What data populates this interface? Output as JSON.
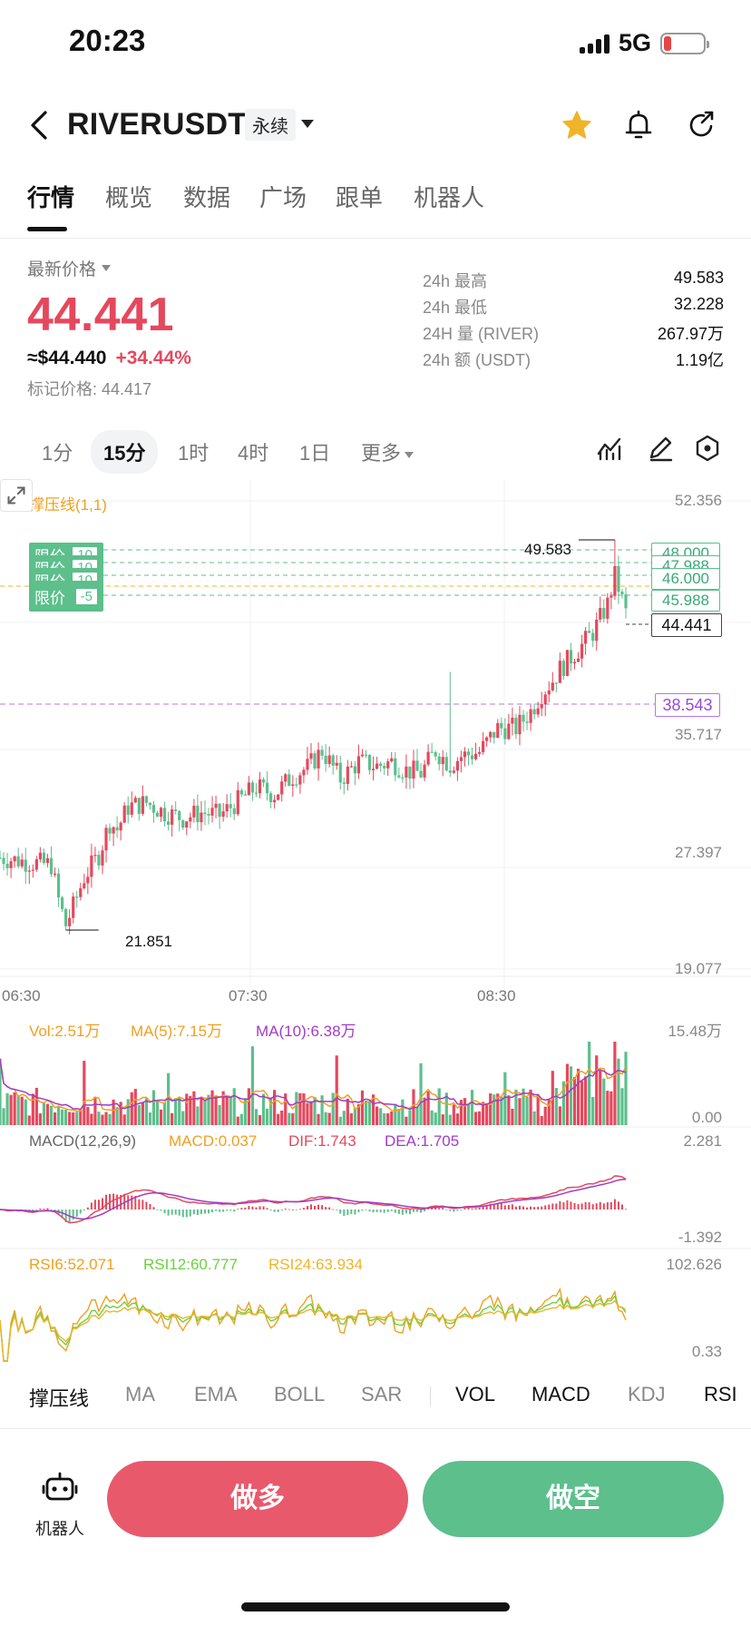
{
  "status": {
    "time": "20:23",
    "network": "5G"
  },
  "header": {
    "symbol": "RIVERUSDT",
    "contract_type": "永续"
  },
  "tabs": [
    "行情",
    "概览",
    "数据",
    "广场",
    "跟单",
    "机器人"
  ],
  "price": {
    "latest_label": "最新价格",
    "last": "44.441",
    "usd": "≈$44.440",
    "change": "+34.44%",
    "mark": "标记价格: 44.417"
  },
  "stats": [
    {
      "label": "24h  最高",
      "value": "49.583"
    },
    {
      "label": "24h  最低",
      "value": "32.228"
    },
    {
      "label": "24H  量 (RIVER)",
      "value": "267.97万"
    },
    {
      "label": "24h  额 (USDT)",
      "value": "1.19亿"
    }
  ],
  "intervals": [
    "1分",
    "15分",
    "1时",
    "4时",
    "1日",
    "更多"
  ],
  "chart": {
    "indicator_label": "撑压线(1,1)",
    "price_axis": [
      "52.356",
      "35.717",
      "27.397",
      "19.077"
    ],
    "high_marker": "49.583",
    "low_marker": "21.851",
    "order_label": "限价",
    "order_qtys": [
      "10",
      "10",
      "10",
      "-5"
    ],
    "right_levels": [
      "48.000",
      "47.988",
      "46.000",
      "45.988"
    ],
    "last_tag": "44.441",
    "alert_tag": "38.543",
    "time_axis": [
      "06:30",
      "07:30",
      "08:30"
    ],
    "vol": {
      "vol": "Vol:2.51万",
      "ma5": "MA(5):7.15万",
      "ma10": "MA(10):6.38万",
      "max": "15.48万",
      "min": "0.00"
    },
    "macd": {
      "title": "MACD(12,26,9)",
      "macd": "MACD:0.037",
      "dif": "DIF:1.743",
      "dea": "DEA:1.705",
      "max": "2.281",
      "min": "-1.392"
    },
    "rsi": {
      "rsi6": "RSI6:52.071",
      "rsi12": "RSI12:60.777",
      "rsi24": "RSI24:63.934",
      "max": "102.626",
      "min": "0.33"
    }
  },
  "chart_data": {
    "type": "candlestick",
    "x": [
      "06:30",
      "07:30",
      "08:30"
    ],
    "price_levels": [
      19.077,
      27.397,
      35.717,
      52.356
    ],
    "close_path": [
      [
        0,
        27.0
      ],
      [
        10,
        26.8
      ],
      [
        20,
        26.6
      ],
      [
        28,
        26.5
      ],
      [
        32,
        24.0
      ],
      [
        36,
        22.2
      ],
      [
        40,
        23.5
      ],
      [
        46,
        25.6
      ],
      [
        54,
        27.2
      ],
      [
        60,
        29.5
      ],
      [
        64,
        29.0
      ],
      [
        70,
        30.6
      ],
      [
        80,
        30.9
      ],
      [
        90,
        30.2
      ],
      [
        100,
        29.8
      ],
      [
        110,
        30.2
      ],
      [
        120,
        30.0
      ],
      [
        130,
        31.0
      ],
      [
        140,
        32.0
      ],
      [
        150,
        31.5
      ],
      [
        160,
        32.8
      ],
      [
        168,
        33.4
      ],
      [
        176,
        34.6
      ],
      [
        186,
        32.6
      ],
      [
        196,
        33.8
      ],
      [
        206,
        33.5
      ],
      [
        214,
        33.8
      ],
      [
        222,
        33.2
      ],
      [
        230,
        33.0
      ],
      [
        238,
        34.6
      ],
      [
        246,
        33.6
      ],
      [
        252,
        34.2
      ],
      [
        262,
        34.5
      ],
      [
        272,
        36.2
      ],
      [
        282,
        36.2
      ],
      [
        290,
        37.4
      ],
      [
        296,
        38.7
      ],
      [
        302,
        39.6
      ],
      [
        306,
        40.4
      ],
      [
        316,
        41.8
      ],
      [
        324,
        43.0
      ],
      [
        332,
        45.0
      ],
      [
        336,
        47.0
      ],
      [
        338,
        46.2
      ],
      [
        342,
        44.4
      ]
    ],
    "high": 49.583,
    "low": 21.851,
    "last": 44.441
  },
  "indicator_tabs": [
    "撑压线",
    "MA",
    "EMA",
    "BOLL",
    "SAR",
    "VOL",
    "MACD",
    "KDJ",
    "RSI"
  ],
  "actions": {
    "robot": "机器人",
    "long": "做多",
    "short": "做空"
  },
  "colors": {
    "up": "#e5485d",
    "down": "#5cbf8c",
    "accent": "#f0b429"
  }
}
